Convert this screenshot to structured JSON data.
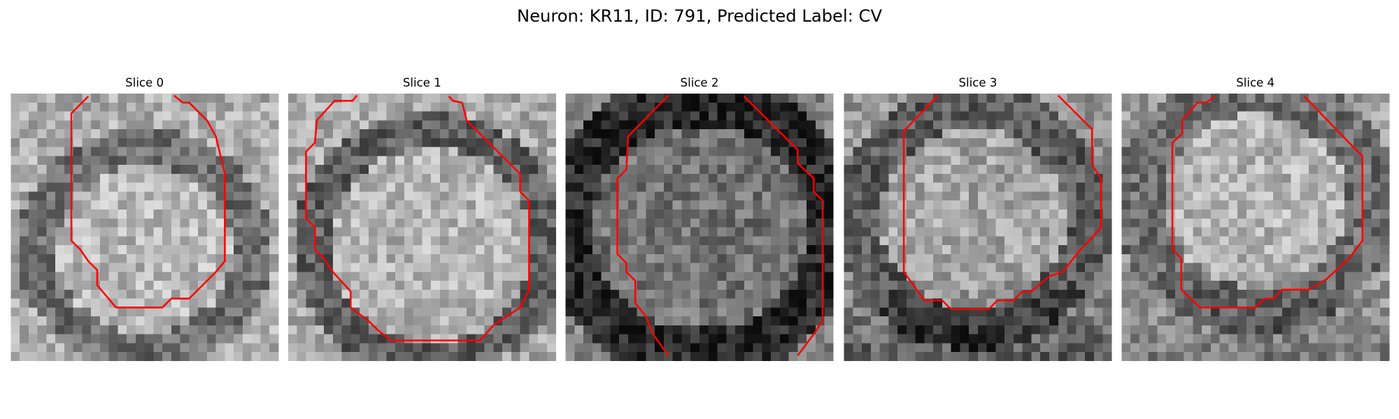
{
  "title": "Neuron: KR11, ID: 791, Predicted Label: CV",
  "panels": [
    {
      "title": "Slice 0"
    },
    {
      "title": "Slice 1"
    },
    {
      "title": "Slice 2"
    },
    {
      "title": "Slice 3"
    },
    {
      "title": "Slice 4"
    }
  ]
}
